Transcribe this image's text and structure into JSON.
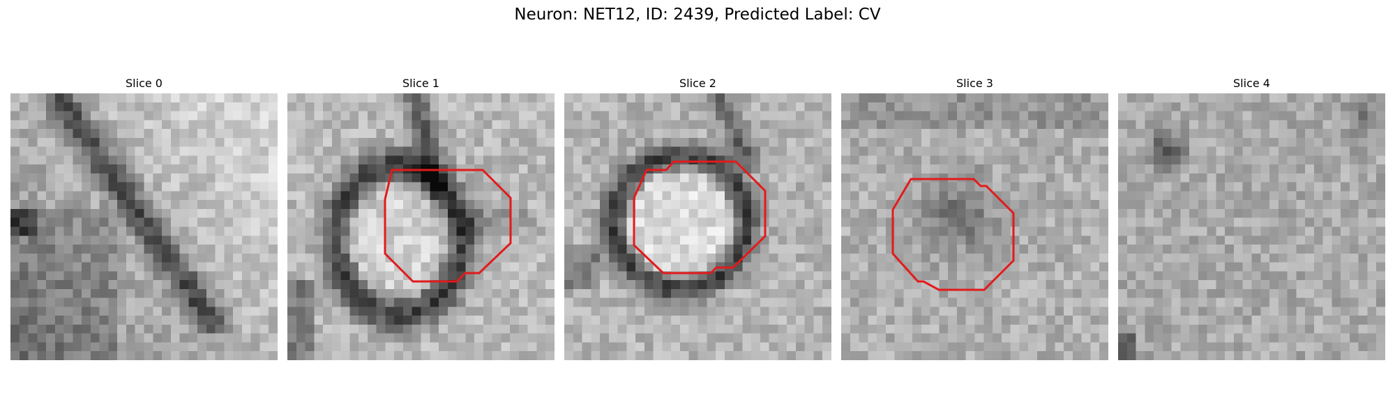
{
  "figure": {
    "title": "Neuron: NET12, ID: 2439, Predicted Label: CV"
  },
  "panels": [
    {
      "title": "Slice 0",
      "has_outline": false
    },
    {
      "title": "Slice 1",
      "has_outline": true
    },
    {
      "title": "Slice 2",
      "has_outline": true
    },
    {
      "title": "Slice 3",
      "has_outline": true
    },
    {
      "title": "Slice 4",
      "has_outline": false
    }
  ],
  "outline_color": "#e31a1c",
  "colormap": "grayscale"
}
